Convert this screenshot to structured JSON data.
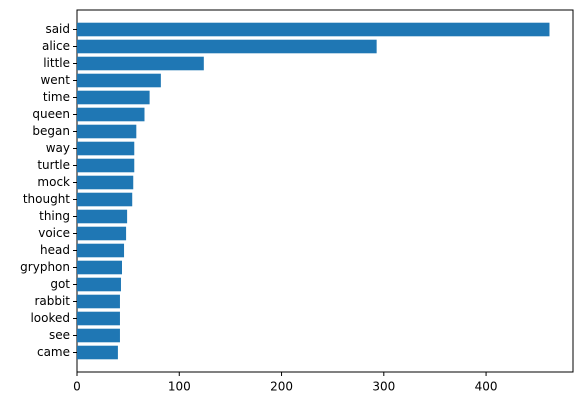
{
  "chart_data": {
    "type": "barh",
    "categories": [
      "said",
      "alice",
      "little",
      "went",
      "time",
      "queen",
      "began",
      "way",
      "turtle",
      "mock",
      "thought",
      "thing",
      "voice",
      "head",
      "gryphon",
      "got",
      "rabbit",
      "looked",
      "see",
      "came"
    ],
    "values": [
      462,
      293,
      124,
      82,
      71,
      66,
      58,
      56,
      56,
      55,
      54,
      49,
      48,
      46,
      44,
      43,
      42,
      42,
      42,
      40
    ],
    "color": "#1f77b4",
    "xlim": [
      0,
      485
    ],
    "xticks": [
      0,
      100,
      200,
      300,
      400
    ],
    "grid": false
  }
}
